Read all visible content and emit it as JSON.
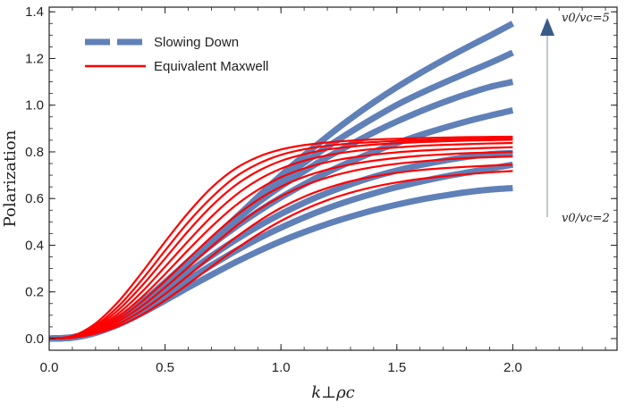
{
  "chart_data": {
    "type": "line",
    "title": "",
    "xlabel": "k⊥ρc",
    "ylabel": "Polarization",
    "xlim": [
      0.0,
      2.45
    ],
    "ylim": [
      -0.05,
      1.42
    ],
    "xticks": [
      0.0,
      0.5,
      1.0,
      1.5,
      2.0
    ],
    "xtick_labels": [
      "0.0",
      "0.5",
      "1.0",
      "1.5",
      "2.0"
    ],
    "yticks": [
      0.0,
      0.2,
      0.4,
      0.6,
      0.8,
      1.0,
      1.2,
      1.4
    ],
    "ytick_labels": [
      "0.0",
      "0.2",
      "0.4",
      "0.6",
      "0.8",
      "1.0",
      "1.2",
      "1.4"
    ],
    "grid": false,
    "legend": {
      "position": "top-left",
      "entries": [
        {
          "label": "Slowing Down",
          "color": "#6080b8",
          "style": "dashed"
        },
        {
          "label": "Equivalent Maxwell",
          "color": "#ff0000",
          "style": "solid"
        }
      ]
    },
    "annotations": {
      "top": "v0/vc=5",
      "bottom": "v0/vc=2",
      "arrow_color": "#3a5a8a"
    },
    "series_groups": [
      {
        "group": "Slowing Down",
        "color": "#6080b8",
        "x": [
          0.0,
          0.1,
          0.2,
          0.3,
          0.4,
          0.5,
          0.6,
          0.7,
          0.8,
          0.9,
          1.0,
          1.1,
          1.2,
          1.3,
          1.4,
          1.5,
          1.6,
          1.7,
          1.8,
          1.9,
          2.0
        ],
        "series": [
          {
            "values": [
              0.0,
              0.004,
              0.025,
              0.069,
              0.136,
              0.222,
              0.316,
              0.414,
              0.512,
              0.607,
              0.699,
              0.785,
              0.866,
              0.942,
              1.012,
              1.077,
              1.137,
              1.193,
              1.246,
              1.297,
              1.35
            ]
          },
          {
            "values": [
              0.0,
              0.005,
              0.03,
              0.078,
              0.148,
              0.234,
              0.327,
              0.422,
              0.513,
              0.599,
              0.679,
              0.753,
              0.822,
              0.885,
              0.945,
              1.001,
              1.05,
              1.095,
              1.138,
              1.18,
              1.225
            ]
          },
          {
            "values": [
              0.0,
              0.005,
              0.033,
              0.085,
              0.157,
              0.241,
              0.331,
              0.42,
              0.504,
              0.582,
              0.652,
              0.717,
              0.777,
              0.831,
              0.883,
              0.93,
              0.973,
              1.012,
              1.047,
              1.078,
              1.1
            ]
          },
          {
            "values": [
              0.0,
              0.006,
              0.034,
              0.087,
              0.157,
              0.237,
              0.32,
              0.401,
              0.475,
              0.543,
              0.605,
              0.661,
              0.712,
              0.758,
              0.8,
              0.838,
              0.872,
              0.902,
              0.93,
              0.955,
              0.978
            ]
          },
          {
            "values": [
              0.0,
              0.005,
              0.031,
              0.078,
              0.14,
              0.211,
              0.284,
              0.354,
              0.42,
              0.48,
              0.534,
              0.582,
              0.624,
              0.661,
              0.693,
              0.72,
              0.743,
              0.762,
              0.778,
              0.79,
              0.795
            ]
          },
          {
            "values": [
              0.0,
              0.005,
              0.028,
              0.07,
              0.125,
              0.188,
              0.252,
              0.314,
              0.373,
              0.427,
              0.475,
              0.519,
              0.558,
              0.592,
              0.622,
              0.649,
              0.672,
              0.693,
              0.711,
              0.728,
              0.745
            ]
          },
          {
            "values": [
              0.0,
              0.004,
              0.024,
              0.061,
              0.109,
              0.163,
              0.219,
              0.273,
              0.325,
              0.373,
              0.417,
              0.456,
              0.491,
              0.522,
              0.55,
              0.574,
              0.595,
              0.612,
              0.627,
              0.638,
              0.645
            ]
          }
        ]
      },
      {
        "group": "Equivalent Maxwell",
        "color": "#ff0000",
        "x": [
          0.0,
          0.1,
          0.2,
          0.3,
          0.4,
          0.5,
          0.6,
          0.7,
          0.8,
          0.9,
          1.0,
          1.1,
          1.2,
          1.3,
          1.4,
          1.5,
          1.6,
          1.7,
          1.8,
          1.9,
          2.0
        ],
        "series": [
          {
            "values": [
              0.0,
              0.011,
              0.065,
              0.16,
              0.283,
              0.415,
              0.539,
              0.646,
              0.726,
              0.778,
              0.81,
              0.829,
              0.84,
              0.848,
              0.853,
              0.856,
              0.859,
              0.861,
              0.863,
              0.864,
              0.865
            ]
          },
          {
            "values": [
              0.0,
              0.01,
              0.056,
              0.14,
              0.252,
              0.377,
              0.499,
              0.604,
              0.69,
              0.748,
              0.787,
              0.811,
              0.826,
              0.836,
              0.842,
              0.847,
              0.85,
              0.853,
              0.855,
              0.857,
              0.858
            ]
          },
          {
            "values": [
              0.0,
              0.009,
              0.05,
              0.124,
              0.226,
              0.343,
              0.461,
              0.567,
              0.654,
              0.717,
              0.761,
              0.79,
              0.81,
              0.822,
              0.831,
              0.837,
              0.842,
              0.845,
              0.848,
              0.85,
              0.852
            ]
          },
          {
            "values": [
              0.0,
              0.008,
              0.044,
              0.109,
              0.2,
              0.308,
              0.418,
              0.522,
              0.611,
              0.679,
              0.728,
              0.762,
              0.785,
              0.801,
              0.812,
              0.819,
              0.826,
              0.83,
              0.833,
              0.836,
              0.838
            ]
          },
          {
            "values": [
              0.0,
              0.007,
              0.039,
              0.096,
              0.178,
              0.276,
              0.38,
              0.479,
              0.567,
              0.637,
              0.691,
              0.729,
              0.756,
              0.775,
              0.788,
              0.798,
              0.805,
              0.81,
              0.814,
              0.817,
              0.82
            ]
          },
          {
            "values": [
              0.0,
              0.006,
              0.034,
              0.085,
              0.158,
              0.247,
              0.342,
              0.436,
              0.522,
              0.594,
              0.651,
              0.693,
              0.724,
              0.746,
              0.762,
              0.774,
              0.783,
              0.789,
              0.794,
              0.797,
              0.8
            ]
          },
          {
            "values": [
              0.0,
              0.005,
              0.03,
              0.075,
              0.139,
              0.219,
              0.306,
              0.394,
              0.477,
              0.55,
              0.609,
              0.655,
              0.69,
              0.716,
              0.735,
              0.749,
              0.759,
              0.767,
              0.773,
              0.777,
              0.78
            ]
          },
          {
            "values": [
              0.0,
              0.004,
              0.025,
              0.064,
              0.12,
              0.191,
              0.27,
              0.352,
              0.43,
              0.5,
              0.56,
              0.608,
              0.645,
              0.674,
              0.694,
              0.71,
              0.722,
              0.73,
              0.736,
              0.741,
              0.745
            ]
          },
          {
            "values": [
              0.0,
              0.004,
              0.021,
              0.054,
              0.102,
              0.164,
              0.234,
              0.308,
              0.38,
              0.446,
              0.504,
              0.553,
              0.593,
              0.625,
              0.65,
              0.669,
              0.684,
              0.695,
              0.704,
              0.712,
              0.718
            ]
          }
        ]
      }
    ]
  }
}
